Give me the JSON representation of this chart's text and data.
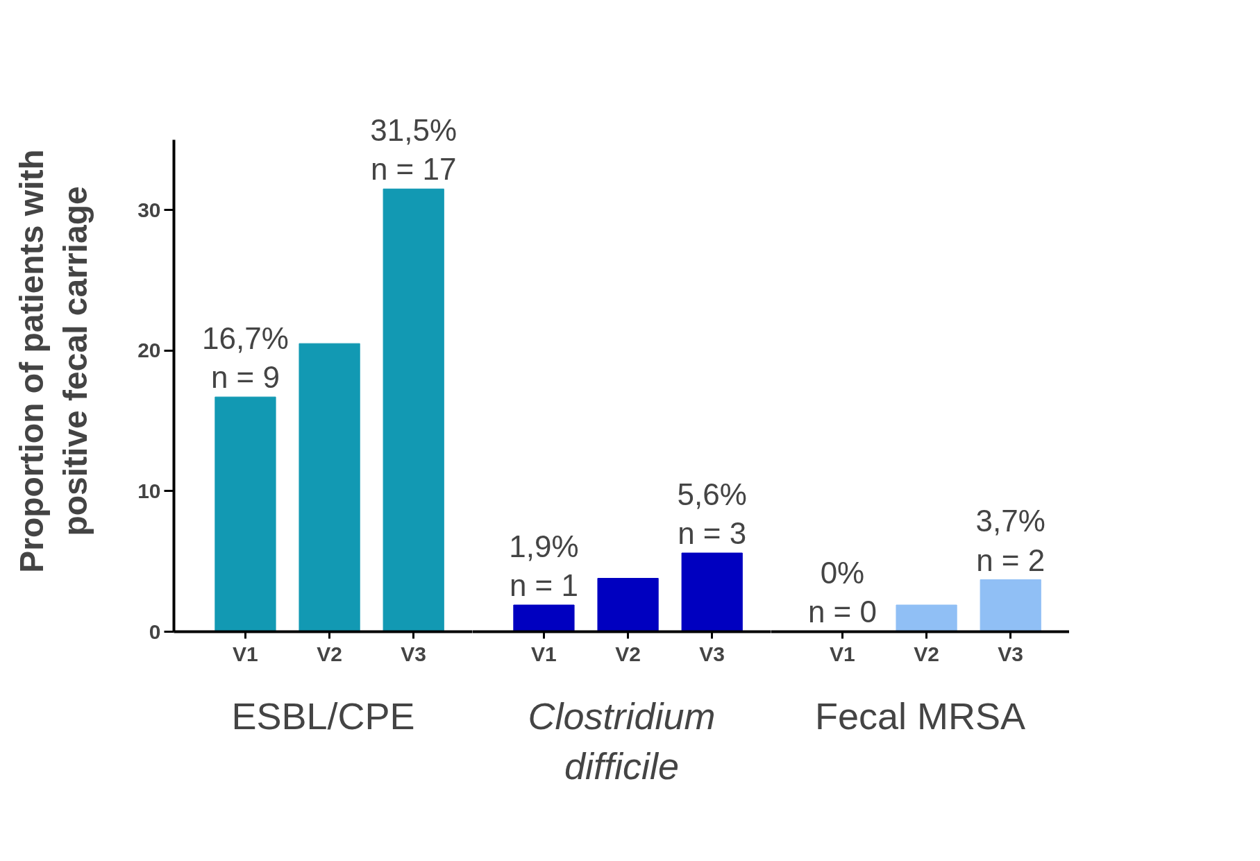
{
  "chart_data": [
    {
      "type": "bar",
      "xlabel": "ESBL/CPE",
      "ylabel": "Proportion of patients with\npositive fecal carriage",
      "categories": [
        "V1",
        "V2",
        "V3"
      ],
      "values": [
        16.7,
        20.5,
        31.5
      ],
      "color": "#1299b3",
      "value_labels": [
        "16,7%\nn = 9",
        null,
        "31,5%\nn = 17"
      ],
      "ylim": [
        0,
        35
      ],
      "yticks": [
        0,
        10,
        20,
        30
      ],
      "grid": false
    },
    {
      "type": "bar",
      "xlabel": "Clostridium difficile",
      "categories": [
        "V1",
        "V2",
        "V3"
      ],
      "values": [
        1.9,
        3.8,
        5.6
      ],
      "color": "#0000c0",
      "value_labels": [
        "1,9%\nn = 1",
        null,
        "5,6%\nn = 3"
      ],
      "tick_labels": "x",
      "grid": false
    },
    {
      "type": "bar",
      "xlabel": "Fecal MRSA",
      "categories": [
        "V1",
        "V2",
        "V3"
      ],
      "values": [
        0,
        1.9,
        3.7
      ],
      "color": "#90bff5",
      "value_labels": [
        "0%\nn = 0",
        null,
        "3,7%\nn = 2"
      ],
      "tick_labels": "x",
      "grid": false
    }
  ]
}
